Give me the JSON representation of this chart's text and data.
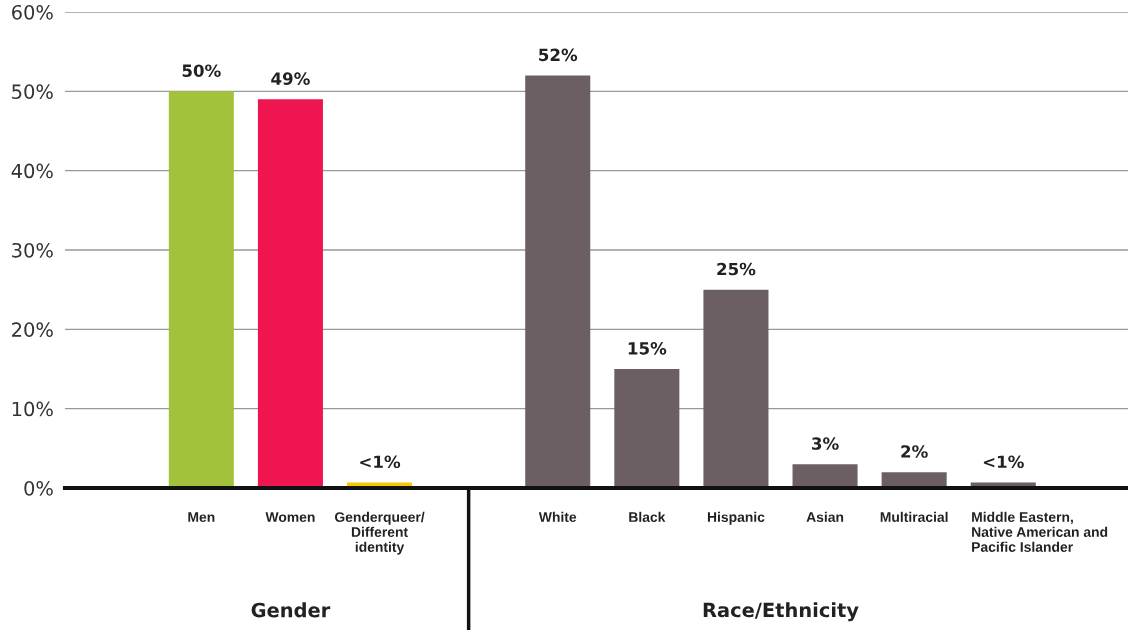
{
  "chart_data": {
    "type": "bar",
    "categories": [
      "Men",
      "Women",
      "Genderqueer/\nDifferent\nidentity",
      null,
      "White",
      "Black",
      "Hispanic",
      "Asian",
      "Multiracial",
      "Middle Eastern,\nNative American and\nPacific Islander"
    ],
    "values": [
      50,
      49,
      0.7,
      null,
      52,
      15,
      25,
      3,
      2,
      0.7
    ],
    "colors": [
      "#a3c23c",
      "#ee1550",
      "#f5c800",
      null,
      "#6b5f63",
      "#6b5f63",
      "#6b5f63",
      "#6b5f63",
      "#6b5f63",
      "#6b5f63"
    ],
    "value_labels": [
      "50%",
      "49%",
      "<1%",
      null,
      "52%",
      "15%",
      "25%",
      "3%",
      "2%",
      "<1%"
    ],
    "ylim": [
      0,
      60
    ],
    "yticks": [
      {
        "value": 0,
        "label": "0%"
      },
      {
        "value": 10,
        "label": "10%"
      },
      {
        "value": 20,
        "label": "20%"
      },
      {
        "value": 30,
        "label": "30%"
      },
      {
        "value": 40,
        "label": "40%"
      },
      {
        "value": 50,
        "label": "50%"
      },
      {
        "value": 60,
        "label": "60%"
      }
    ],
    "grid": "y",
    "annotations": [
      "Gender",
      "Race/Ethnicity"
    ]
  }
}
